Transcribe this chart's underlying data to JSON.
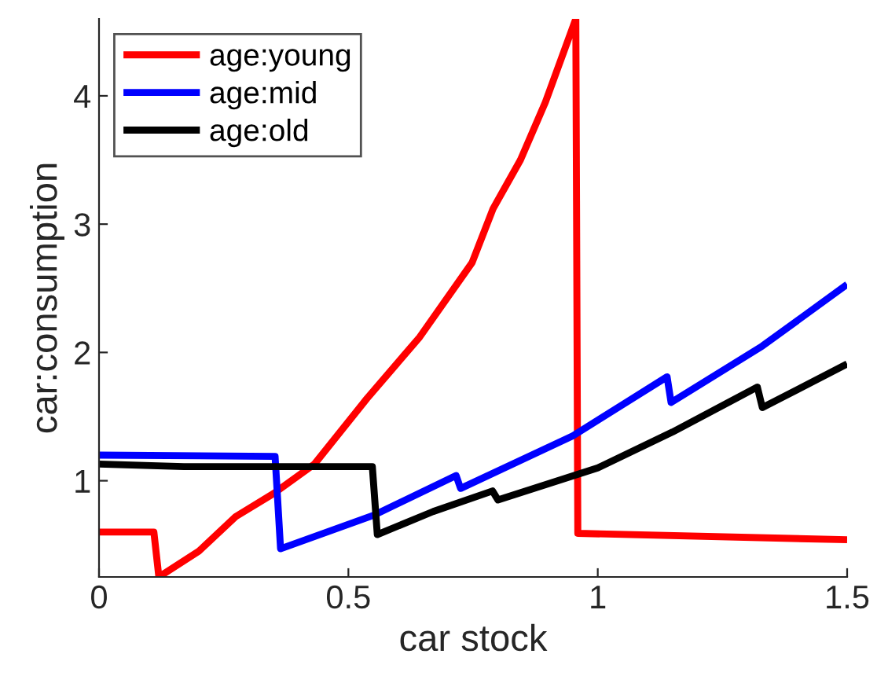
{
  "chart_data": {
    "type": "line",
    "xlabel": "car stock",
    "ylabel": "car:consumption",
    "xlim": [
      0,
      1.5
    ],
    "ylim": [
      0.25,
      4.6
    ],
    "xticks": [
      0,
      0.5,
      1,
      1.5
    ],
    "yticks": [
      1,
      2,
      3,
      4
    ],
    "grid": false,
    "legend": "top left",
    "line_style": "solid",
    "marker": "none",
    "series": [
      {
        "name": "age:young",
        "color": "#ff0000",
        "x": [
          0,
          0.11,
          0.12,
          0.2,
          0.274,
          0.35,
          0.432,
          0.537,
          0.643,
          0.748,
          0.79,
          0.845,
          0.895,
          0.956,
          0.96,
          1.5
        ],
        "values": [
          0.6,
          0.6,
          0.25,
          0.45,
          0.72,
          0.9,
          1.13,
          1.64,
          2.12,
          2.7,
          3.12,
          3.5,
          3.95,
          4.6,
          0.59,
          0.54
        ]
      },
      {
        "name": "age:mid",
        "color": "#0000ff",
        "x": [
          0,
          0.353,
          0.364,
          0.55,
          0.716,
          0.725,
          0.95,
          1.139,
          1.147,
          1.33,
          1.5
        ],
        "values": [
          1.2,
          1.19,
          0.47,
          0.73,
          1.04,
          0.94,
          1.35,
          1.81,
          1.61,
          2.05,
          2.53
        ]
      },
      {
        "name": "age:old",
        "color": "#000000",
        "x": [
          0,
          0.17,
          0.548,
          0.558,
          0.67,
          0.789,
          0.8,
          1.0,
          1.15,
          1.32,
          1.33,
          1.5
        ],
        "values": [
          1.13,
          1.11,
          1.11,
          0.58,
          0.76,
          0.92,
          0.85,
          1.1,
          1.38,
          1.73,
          1.57,
          1.91
        ]
      }
    ]
  }
}
